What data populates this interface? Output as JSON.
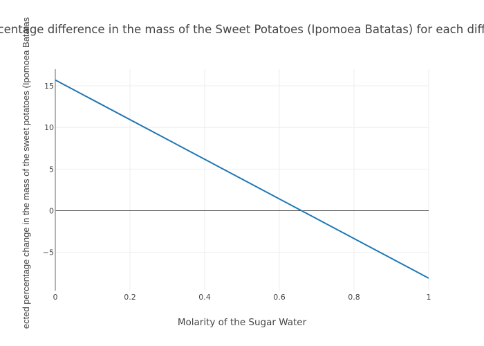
{
  "chart_data": {
    "type": "line",
    "title": "ercentage difference in the mass of the Sweet Potatoes (Ipomoea Batatas) for each differe",
    "xlabel": "Molarity of the Sugar Water",
    "ylabel": "ected percentage change in the mass of the sweet potatoes (Ipomoea Batatas",
    "xlim": [
      0,
      1
    ],
    "ylim": [
      -9.6,
      17
    ],
    "grid": true,
    "x_ticks": [
      0,
      0.2,
      0.4,
      0.6,
      0.8,
      1
    ],
    "x_tick_labels": [
      "0",
      "0.2",
      "0.4",
      "0.6",
      "0.8",
      "1"
    ],
    "y_ticks": [
      -5,
      0,
      5,
      10,
      15
    ],
    "y_tick_labels": [
      "−5",
      "0",
      "5",
      "10",
      "15"
    ],
    "series": [
      {
        "name": "trace 0",
        "color": "#1f77b4",
        "x": [
          0,
          1
        ],
        "y": [
          15.7,
          -8.1
        ]
      }
    ]
  }
}
